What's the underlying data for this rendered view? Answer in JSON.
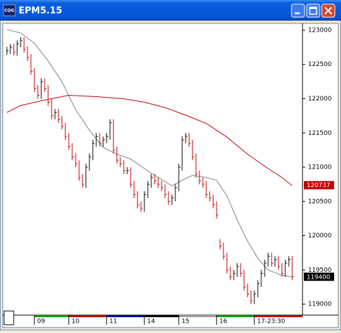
{
  "window": {
    "title": "EPM5.15",
    "icon_label": "CQG"
  },
  "chart_data": {
    "type": "ohlc",
    "up_color": "#000000",
    "down_color": "#c00000",
    "ylim": [
      118860,
      123080
    ],
    "yticks": [
      119000,
      119500,
      120000,
      120500,
      121000,
      121500,
      122000,
      122500,
      123000
    ],
    "xlim": [
      -0.8,
      86
    ],
    "xticks": [
      {
        "value": 8,
        "label": "09"
      },
      {
        "value": 18,
        "label": "10"
      },
      {
        "value": 29,
        "label": "11"
      },
      {
        "value": 40,
        "label": "14"
      },
      {
        "value": 50,
        "label": "15"
      },
      {
        "value": 61,
        "label": "16"
      },
      {
        "value": 72,
        "label": "17-23:30"
      }
    ],
    "day_colors": [
      "#00a000",
      "#c00000",
      "#0000a0",
      "#000000",
      "#a0a0a0",
      "#00a000",
      "#c00000"
    ],
    "high": [
      122760,
      122800,
      122800,
      122850,
      122900,
      122900,
      122770,
      122650,
      122450,
      122200,
      122300,
      122300,
      122200,
      122000,
      121850,
      121850,
      121750,
      121650,
      121500,
      121350,
      121200,
      121100,
      120900,
      121050,
      121200,
      121400,
      121500,
      121500,
      121450,
      121500,
      121700,
      121700,
      121300,
      121150,
      121100,
      121000,
      121000,
      120800,
      120650,
      120500,
      120650,
      120800,
      120900,
      120900,
      120850,
      120800,
      120750,
      120650,
      120600,
      120750,
      121050,
      121450,
      121500,
      121500,
      121400,
      121200,
      120950,
      120850,
      120800,
      120650,
      120600,
      120500,
      119950,
      119900,
      119750,
      119550,
      119500,
      119600,
      119600,
      119500,
      119300,
      119200,
      119200,
      119350,
      119500,
      119650,
      119750,
      119750,
      119700,
      119700,
      119600,
      119650,
      119700,
      119700
    ],
    "low": [
      122640,
      122650,
      122630,
      122630,
      122750,
      122670,
      122550,
      122350,
      122100,
      122000,
      122000,
      122100,
      121900,
      121700,
      121700,
      121650,
      121550,
      121400,
      121250,
      121100,
      121000,
      120800,
      120700,
      120700,
      120950,
      121100,
      121300,
      121300,
      121300,
      121350,
      121400,
      121200,
      121050,
      121000,
      120900,
      120900,
      120700,
      120550,
      120400,
      120350,
      120350,
      120550,
      120700,
      120750,
      120700,
      120650,
      120550,
      120450,
      120450,
      120500,
      120650,
      120950,
      121350,
      121300,
      121100,
      120850,
      120750,
      120700,
      120550,
      120500,
      120400,
      120250,
      119800,
      119650,
      119450,
      119350,
      119350,
      119400,
      119400,
      119200,
      119100,
      119000,
      119000,
      119100,
      119250,
      119400,
      119550,
      119550,
      119550,
      119500,
      119400,
      119400,
      119550,
      119350
    ],
    "close": [
      122700,
      122750,
      122680,
      122800,
      122850,
      122720,
      122600,
      122400,
      122150,
      122050,
      122250,
      122150,
      121950,
      121750,
      121800,
      121700,
      121600,
      121450,
      121300,
      121150,
      121050,
      120850,
      120750,
      121000,
      121150,
      121350,
      121450,
      121350,
      121400,
      121450,
      121650,
      121250,
      121100,
      121050,
      120950,
      120950,
      120750,
      120600,
      120450,
      120400,
      120600,
      120750,
      120850,
      120800,
      120750,
      120700,
      120600,
      120500,
      120550,
      120700,
      121000,
      121400,
      121450,
      121350,
      121150,
      120900,
      120800,
      120750,
      120600,
      120550,
      120450,
      120300,
      119850,
      119700,
      119500,
      119400,
      119450,
      119550,
      119450,
      119250,
      119150,
      119050,
      119150,
      119300,
      119450,
      119600,
      119700,
      119600,
      119650,
      119550,
      119450,
      119600,
      119650,
      119400
    ],
    "series": [
      {
        "color": "#808080",
        "x": [
          0,
          4,
          8,
          12,
          16,
          20,
          24,
          28,
          32,
          36,
          40,
          44,
          48,
          51,
          54,
          58,
          61,
          64,
          67,
          70,
          73,
          76,
          80,
          83
        ],
        "values": [
          123010,
          122960,
          122810,
          122550,
          122250,
          121840,
          121540,
          121290,
          121190,
          121120,
          120980,
          120850,
          120730,
          120810,
          120880,
          120850,
          120810,
          120580,
          120230,
          119920,
          119670,
          119500,
          119420,
          119400
        ]
      },
      {
        "color": "#c00000",
        "x": [
          0,
          4,
          10,
          18,
          26,
          34,
          40,
          46,
          52,
          58,
          64,
          70,
          76,
          80,
          83
        ],
        "values": [
          121800,
          121900,
          121970,
          122050,
          122030,
          122000,
          121950,
          121870,
          121760,
          121640,
          121440,
          121190,
          120980,
          120850,
          120730
        ]
      }
    ],
    "price_labels": [
      120737,
      119400
    ],
    "price_label_colors": [
      "#c00000",
      "#000000"
    ]
  }
}
